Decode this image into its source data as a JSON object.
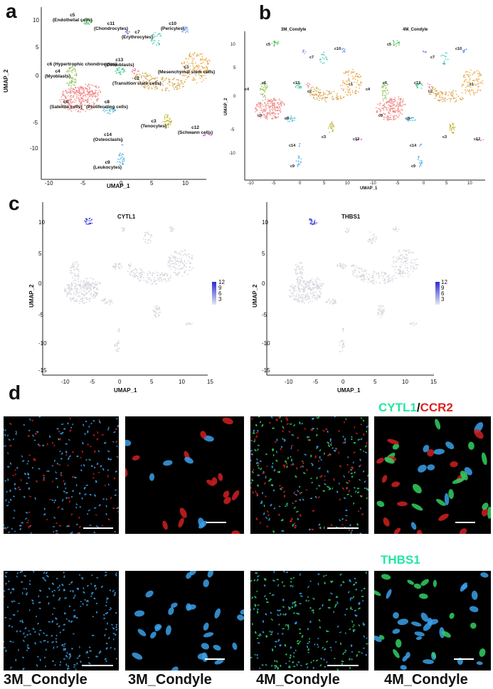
{
  "panels": {
    "a": "a",
    "b": "b",
    "c": "c",
    "d": "d"
  },
  "panel_a": {
    "xlabel": "UMAP_1",
    "ylabel": "UMAP_2",
    "xticks": [
      "-10",
      "-5",
      "0",
      "5",
      "10"
    ],
    "yticks": [
      "10",
      "5",
      "0",
      "-5",
      "-10"
    ],
    "clusters": [
      {
        "id": "c0",
        "name": "(Satellite cells)"
      },
      {
        "id": "c1",
        "name": "(Mesenchymal stem cells)"
      },
      {
        "id": "c2",
        "name": "(Transition state cells)"
      },
      {
        "id": "c3",
        "name": "(Tenocytes)"
      },
      {
        "id": "c4",
        "name": "(Myoblasts)"
      },
      {
        "id": "c5",
        "name": "(Endothelial cells)"
      },
      {
        "id": "c6",
        "name": "(Hypertrophic chondrocytes)"
      },
      {
        "id": "c7",
        "name": "(Erythrocytes)"
      },
      {
        "id": "c8",
        "name": "(Proliferating cells)"
      },
      {
        "id": "c9",
        "name": "(Leukocytes)"
      },
      {
        "id": "c10",
        "name": "(Pericytes)"
      },
      {
        "id": "c11",
        "name": "(Chondrocytes)"
      },
      {
        "id": "c12",
        "name": "(Schwann cells)"
      },
      {
        "id": "c13",
        "name": "(Osteoblasts)"
      },
      {
        "id": "c14",
        "name": "(Osteoclasts)"
      }
    ],
    "colors": {
      "c0": "#f08080",
      "c1": "#e8a33a",
      "c2": "#d4a040",
      "c3": "#b8b020",
      "c4": "#8cc050",
      "c5": "#60c060",
      "c6": "#40c890",
      "c7": "#40c8b0",
      "c8": "#40b8d0",
      "c9": "#40a8e0",
      "c10": "#6090e8",
      "c11": "#a070e8",
      "c12": "#e060d0",
      "c13": "#e87090",
      "c14": "#60a0e0"
    }
  },
  "panel_b": {
    "titles": [
      "3M_Condyle",
      "4M_Condyle"
    ],
    "xlabel": "UMAP_1",
    "ylabel": "UMAP_2",
    "xticks": [
      "-10",
      "-5",
      "0",
      "5",
      "10"
    ],
    "yticks": [
      "10",
      "5",
      "0",
      "-5",
      "-10"
    ]
  },
  "panel_c": {
    "plots": [
      {
        "title": "CYTL1",
        "xlabel": "UMAP_1",
        "ylabel": "UMAP_2"
      },
      {
        "title": "THBS1",
        "xlabel": "UMAP_1",
        "ylabel": "UMAP_2"
      }
    ],
    "xticks": [
      "-10",
      "-5",
      "0",
      "5",
      "10",
      "15"
    ],
    "yticks": [
      "10",
      "5",
      "0",
      "-5",
      "-10",
      "-15"
    ],
    "legend_values": [
      "12",
      "9",
      "6",
      "3"
    ],
    "low_color": "#e0e0e8",
    "high_color": "#2a2ad8"
  },
  "panel_d": {
    "stain_top": {
      "a": "CYTL1",
      "sep": "/",
      "b": "CCR2"
    },
    "stain_bottom": "THBS1",
    "captions": [
      "3M_Condyle",
      "3M_Condyle",
      "4M_Condyle",
      "4M_Condyle"
    ],
    "colors": {
      "green": "#22e8a0",
      "red": "#e02020",
      "blue": "#3aa0e8"
    }
  }
}
